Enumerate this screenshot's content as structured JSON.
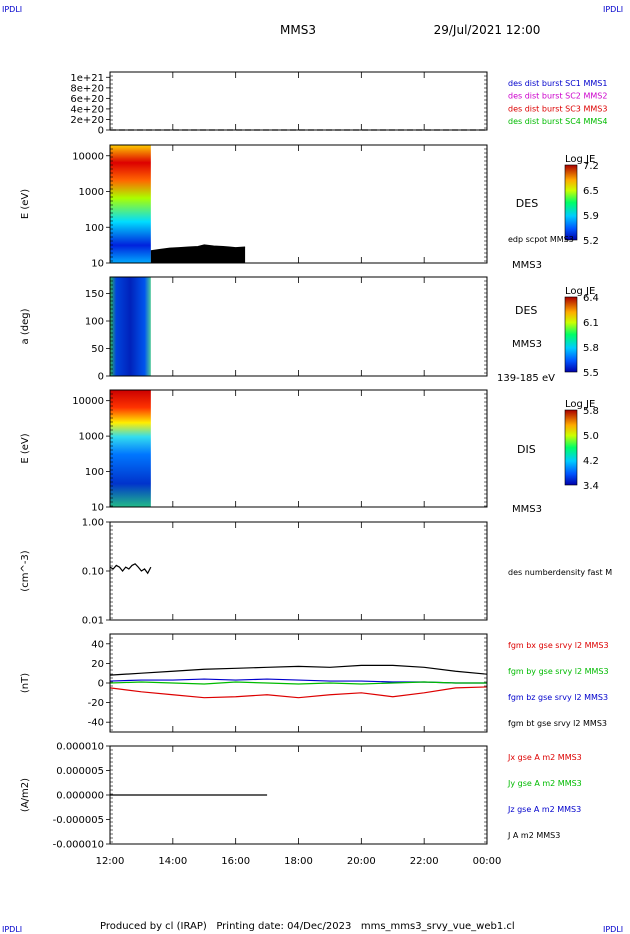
{
  "header": {
    "corner_left_top": "IPDLI",
    "corner_right_top": "IPDLI",
    "corner_left_bottom": "IPDLI",
    "corner_right_bottom": "IPDLI",
    "spacecraft": "MMS3",
    "datetime": "29/Jul/2021 12:00"
  },
  "footer": {
    "text": "Produced by cl (IRAP)   Printing date: 04/Dec/2023   mms_mms3_srvy_vue_web1.cl"
  },
  "x_axis": {
    "ticks": [
      "12:00",
      "14:00",
      "16:00",
      "18:00",
      "20:00",
      "22:00",
      "00:00"
    ],
    "tick_hours": [
      12,
      14,
      16,
      18,
      20,
      22,
      24
    ],
    "range_hours": [
      12,
      24
    ]
  },
  "colors": {
    "blue": "#0000cc",
    "magenta": "#cc00cc",
    "red": "#dd0000",
    "green": "#00bb00",
    "black": "#000000"
  },
  "chart_data": [
    {
      "type": "line",
      "id": "panel1",
      "ylabel": "",
      "yticks": [
        "1e+21",
        "8e+20",
        "6e+20",
        "4e+20",
        "2e+20",
        "0"
      ],
      "ylim": [
        0,
        1.1e+21
      ],
      "legend": [
        {
          "text": "des dist burst SC1 MMS1",
          "color": "#0000cc"
        },
        {
          "text": "des dist burst SC2 MMS2",
          "color": "#cc00cc"
        },
        {
          "text": "des dist burst SC3 MMS3",
          "color": "#dd0000"
        },
        {
          "text": "des dist burst SC4 MMS4",
          "color": "#00bb00"
        }
      ],
      "series": [
        {
          "values": [
            0,
            0
          ],
          "x": [
            12,
            24
          ],
          "style": "dashed"
        }
      ]
    },
    {
      "type": "heatmap",
      "id": "panel2",
      "ylabel": "E (eV)",
      "yscale": "log",
      "ylim": [
        10,
        20000
      ],
      "yticks": [
        "10000",
        "1000",
        "100",
        "10"
      ],
      "data_x_range": [
        12.0,
        13.3
      ],
      "right_labels": [
        "DES",
        "edp scpot MMS3",
        "MMS3"
      ],
      "colorbar": {
        "title": "Log JE",
        "ticks": [
          "7.2",
          "6.5",
          "5.9",
          "5.2"
        ]
      },
      "overlay_line": {
        "x": [
          13.3,
          13.6,
          13.9,
          14.2,
          14.5,
          14.8,
          15.0,
          15.3,
          15.6,
          15.8,
          16.0,
          16.3
        ],
        "y": [
          22,
          24,
          26,
          27,
          28,
          29,
          32,
          30,
          29,
          28,
          27,
          28
        ]
      }
    },
    {
      "type": "heatmap",
      "id": "panel3",
      "ylabel": "a (deg)",
      "ylim": [
        0,
        180
      ],
      "yticks": [
        "150",
        "100",
        "50",
        "0"
      ],
      "data_x_range": [
        12.0,
        13.3
      ],
      "right_labels": [
        "DES",
        "MMS3",
        "139-185 eV"
      ],
      "colorbar": {
        "title": "Log JE",
        "ticks": [
          "6.4",
          "6.1",
          "5.8",
          "5.5"
        ]
      }
    },
    {
      "type": "heatmap",
      "id": "panel4",
      "ylabel": "E (eV)",
      "yscale": "log",
      "ylim": [
        10,
        20000
      ],
      "yticks": [
        "10000",
        "1000",
        "100",
        "10"
      ],
      "data_x_range": [
        12.0,
        13.3
      ],
      "right_labels": [
        "DIS",
        "MMS3"
      ],
      "colorbar": {
        "title": "Log JE",
        "ticks": [
          "5.8",
          "5.0",
          "4.2",
          "3.4"
        ]
      }
    },
    {
      "type": "line",
      "id": "panel5",
      "ylabel": "(cm^-3)",
      "yscale": "log",
      "ylim": [
        0.01,
        1.0
      ],
      "yticks": [
        "1.00",
        "0.10",
        "0.01"
      ],
      "legend": [
        {
          "text": "des numberdensity fast M",
          "color": "#000000"
        }
      ],
      "series": [
        {
          "x": [
            12.0,
            12.1,
            12.2,
            12.3,
            12.4,
            12.5,
            12.6,
            12.7,
            12.8,
            12.9,
            13.0,
            13.1,
            13.2,
            13.3
          ],
          "values": [
            0.12,
            0.11,
            0.13,
            0.12,
            0.1,
            0.12,
            0.11,
            0.13,
            0.14,
            0.12,
            0.1,
            0.11,
            0.09,
            0.12
          ]
        }
      ]
    },
    {
      "type": "line",
      "id": "panel6",
      "ylabel": "(nT)",
      "ylim": [
        -50,
        50
      ],
      "yticks": [
        "40",
        "20",
        "0",
        "-20",
        "-40"
      ],
      "legend": [
        {
          "text": "fgm bx gse srvy l2 MMS3",
          "color": "#dd0000"
        },
        {
          "text": "fgm by gse srvy l2 MMS3",
          "color": "#00bb00"
        },
        {
          "text": "fgm bz gse srvy l2 MMS3",
          "color": "#0000cc"
        },
        {
          "text": "fgm bt gse srvy l2 MMS3",
          "color": "#000000"
        }
      ],
      "x": [
        12,
        13,
        14,
        15,
        16,
        17,
        18,
        19,
        20,
        21,
        22,
        23,
        24
      ],
      "series": [
        {
          "color": "#000000",
          "values": [
            8,
            10,
            12,
            14,
            15,
            16,
            17,
            16,
            18,
            18,
            16,
            12,
            9
          ]
        },
        {
          "color": "#0000cc",
          "values": [
            2,
            3,
            3,
            4,
            3,
            4,
            3,
            2,
            2,
            1,
            1,
            0,
            0
          ]
        },
        {
          "color": "#00bb00",
          "values": [
            0,
            1,
            0,
            -1,
            1,
            0,
            -1,
            0,
            -1,
            0,
            1,
            0,
            0
          ]
        },
        {
          "color": "#dd0000",
          "values": [
            -5,
            -9,
            -12,
            -15,
            -14,
            -12,
            -15,
            -12,
            -10,
            -14,
            -10,
            -5,
            -4
          ]
        }
      ]
    },
    {
      "type": "line",
      "id": "panel7",
      "ylabel": "(A/m2)",
      "ylim": [
        -1e-05,
        1e-05
      ],
      "yticks": [
        "0.000010",
        "0.000005",
        "0.000000",
        "-0.000005",
        "-0.000010"
      ],
      "legend": [
        {
          "text": "Jx gse A m2 MMS3",
          "color": "#dd0000"
        },
        {
          "text": "Jy gse A m2 MMS3",
          "color": "#00bb00"
        },
        {
          "text": "Jz gse A m2 MMS3",
          "color": "#0000cc"
        },
        {
          "text": "J A m2 MMS3",
          "color": "#000000"
        }
      ],
      "series": [
        {
          "x": [
            12,
            17
          ],
          "values": [
            0,
            0
          ]
        }
      ]
    }
  ]
}
